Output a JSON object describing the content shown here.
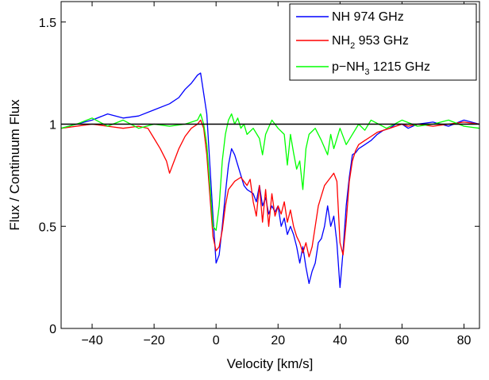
{
  "chart_data": {
    "type": "line",
    "title": "",
    "xlabel": "Velocity [km/s]",
    "ylabel": "Flux / Continuum Flux",
    "xlim": [
      -50,
      85
    ],
    "ylim": [
      0,
      1.6
    ],
    "xticks": [
      -40,
      -20,
      0,
      20,
      40,
      60,
      80
    ],
    "yticks": [
      0,
      0.5,
      1,
      1.5
    ],
    "ytick_labels": [
      "0",
      "0.5",
      "1",
      "1.5"
    ],
    "grid": false,
    "legend_position": "top-right",
    "reference_line": {
      "y": 1,
      "color": "#000000"
    },
    "series": [
      {
        "name": "NH 974 GHz",
        "label_parts": [
          "NH 974 GHz"
        ],
        "color": "#0000ff",
        "x": [
          -50,
          -45,
          -40,
          -35,
          -30,
          -25,
          -20,
          -15,
          -12,
          -10,
          -8,
          -6,
          -5,
          -4,
          -3,
          -2,
          -1,
          0,
          1,
          2,
          3,
          4,
          5,
          6,
          7,
          8,
          9,
          10,
          11,
          12,
          13,
          14,
          15,
          16,
          17,
          18,
          19,
          20,
          21,
          22,
          23,
          24,
          25,
          26,
          27,
          28,
          29,
          30,
          31,
          32,
          33,
          34,
          35,
          36,
          37,
          38,
          39,
          40,
          41,
          42,
          43,
          44,
          45,
          46,
          48,
          50,
          52,
          54,
          56,
          58,
          60,
          62,
          65,
          70,
          75,
          80,
          85
        ],
        "y": [
          0.98,
          1.0,
          1.02,
          1.05,
          1.03,
          1.04,
          1.07,
          1.1,
          1.13,
          1.17,
          1.2,
          1.24,
          1.25,
          1.15,
          1.05,
          0.8,
          0.55,
          0.32,
          0.36,
          0.5,
          0.66,
          0.8,
          0.88,
          0.85,
          0.8,
          0.75,
          0.7,
          0.68,
          0.67,
          0.66,
          0.62,
          0.7,
          0.6,
          0.64,
          0.56,
          0.6,
          0.57,
          0.6,
          0.5,
          0.54,
          0.46,
          0.5,
          0.46,
          0.4,
          0.32,
          0.4,
          0.3,
          0.22,
          0.28,
          0.32,
          0.42,
          0.44,
          0.5,
          0.6,
          0.5,
          0.55,
          0.42,
          0.2,
          0.38,
          0.6,
          0.74,
          0.85,
          0.86,
          0.88,
          0.9,
          0.92,
          0.95,
          0.97,
          0.98,
          1.0,
          1.0,
          0.98,
          1.0,
          1.01,
          0.99,
          1.02,
          1.0
        ]
      },
      {
        "name": "NH2 953 GHz",
        "label_parts": [
          "NH",
          "2",
          " 953 GHz"
        ],
        "color": "#ff0000",
        "x": [
          -50,
          -45,
          -40,
          -35,
          -30,
          -25,
          -22,
          -20,
          -18,
          -16,
          -15,
          -14,
          -12,
          -10,
          -8,
          -6,
          -5,
          -4,
          -3,
          -2,
          -1,
          0,
          1,
          2,
          3,
          4,
          5,
          6,
          7,
          8,
          9,
          10,
          11,
          12,
          13,
          14,
          15,
          16,
          17,
          18,
          19,
          20,
          21,
          22,
          23,
          24,
          25,
          26,
          27,
          28,
          29,
          30,
          31,
          32,
          33,
          34,
          35,
          36,
          37,
          38,
          39,
          40,
          41,
          42,
          43,
          44,
          45,
          46,
          48,
          50,
          52,
          54,
          56,
          58,
          60,
          62,
          65,
          70,
          75,
          80,
          85
        ],
        "y": [
          0.98,
          0.99,
          1.0,
          0.99,
          0.98,
          0.99,
          0.98,
          0.93,
          0.88,
          0.82,
          0.76,
          0.8,
          0.88,
          0.94,
          0.98,
          1.0,
          1.02,
          0.98,
          0.85,
          0.65,
          0.45,
          0.38,
          0.4,
          0.48,
          0.6,
          0.68,
          0.7,
          0.72,
          0.73,
          0.74,
          0.72,
          0.7,
          0.73,
          0.62,
          0.55,
          0.7,
          0.52,
          0.68,
          0.5,
          0.66,
          0.55,
          0.6,
          0.56,
          0.62,
          0.52,
          0.58,
          0.5,
          0.45,
          0.42,
          0.37,
          0.42,
          0.35,
          0.4,
          0.5,
          0.6,
          0.65,
          0.7,
          0.72,
          0.74,
          0.76,
          0.72,
          0.42,
          0.36,
          0.52,
          0.72,
          0.82,
          0.87,
          0.9,
          0.92,
          0.94,
          0.96,
          0.97,
          0.98,
          0.99,
          1.0,
          0.99,
          1.0,
          0.99,
          1.0,
          1.01,
          1.0
        ]
      },
      {
        "name": "p-NH3 1215 GHz",
        "label_parts": [
          "p−NH",
          "3",
          " 1215 GHz"
        ],
        "color": "#00ff00",
        "x": [
          -50,
          -45,
          -40,
          -35,
          -30,
          -25,
          -20,
          -15,
          -10,
          -6,
          -5,
          -4,
          -3,
          -2,
          -1,
          0,
          1,
          2,
          3,
          4,
          5,
          6,
          7,
          8,
          9,
          10,
          12,
          14,
          15,
          16,
          18,
          20,
          22,
          23,
          24,
          25,
          26,
          27,
          28,
          29,
          30,
          32,
          34,
          36,
          37,
          38,
          40,
          42,
          44,
          46,
          48,
          50,
          55,
          60,
          65,
          70,
          75,
          80,
          85
        ],
        "y": [
          0.98,
          1.0,
          1.03,
          0.99,
          1.02,
          0.98,
          1.0,
          0.99,
          1.0,
          1.02,
          1.05,
          1.0,
          0.9,
          0.7,
          0.5,
          0.48,
          0.6,
          0.82,
          0.95,
          1.02,
          1.05,
          1.0,
          1.03,
          0.98,
          1.0,
          0.95,
          0.98,
          0.93,
          0.85,
          0.95,
          1.02,
          0.98,
          0.95,
          0.8,
          0.95,
          0.86,
          0.78,
          0.82,
          0.68,
          0.88,
          0.95,
          0.98,
          0.92,
          0.85,
          0.95,
          0.88,
          0.98,
          0.9,
          0.95,
          1.0,
          0.97,
          1.02,
          0.98,
          1.02,
          0.99,
          1.0,
          1.02,
          0.99,
          0.98
        ]
      }
    ]
  }
}
